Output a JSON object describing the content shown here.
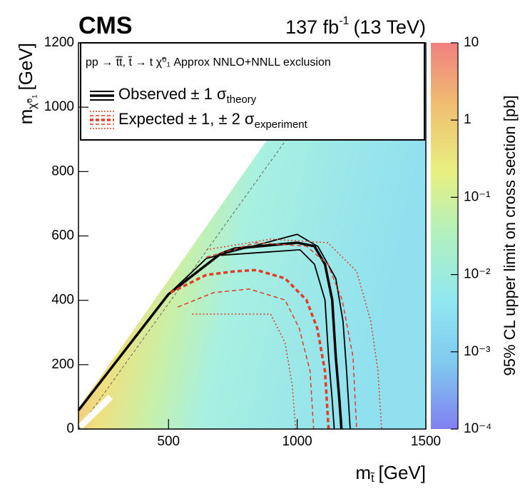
{
  "chart_data": {
    "type": "contour",
    "experiment": "CMS",
    "lumi": {
      "main": "137 fb",
      "sup": "-1",
      "tail": "(13 TeV)"
    },
    "xlabel": {
      "main": "m",
      "sub": "t̃",
      "tail": "[GeV]"
    },
    "ylabel": {
      "main": "m",
      "sub": "χ̃⁰₁",
      "tail": "[GeV]"
    },
    "zlabel": "95% CL upper limit on cross section [pb]",
    "legend_header": "pp → t̃t̃, t̃ → t χ̃⁰₁  Approx NNLO+NNLL exclusion",
    "legend": [
      {
        "main": "Observed ± 1 σ",
        "sub": "theory"
      },
      {
        "main": "Expected ± 1, ± 2 σ",
        "sub": "experiment"
      }
    ],
    "xlim": [
      150,
      1500
    ],
    "xticks": [
      500,
      1000,
      1500
    ],
    "ylim": [
      0,
      1200
    ],
    "yticks": [
      0,
      200,
      400,
      600,
      800,
      1000,
      1200
    ],
    "zlim": [
      0.0001,
      10
    ],
    "zlog": true,
    "zticks": [
      {
        "value": 0.0001,
        "label": "10⁻⁴"
      },
      {
        "value": 0.001,
        "label": "10⁻³"
      },
      {
        "value": 0.01,
        "label": "10⁻²"
      },
      {
        "value": 0.1,
        "label": "10⁻¹"
      },
      1,
      10
    ],
    "colormap": [
      "#8080f0",
      "#80c8f0",
      "#90e8f0",
      "#b0f0c0",
      "#e8f080",
      "#f0c070",
      "#f08080"
    ],
    "contours": [
      {
        "style": "observed",
        "color": "#000000",
        "x": [
          150,
          500,
          703,
          758,
          1000,
          1067,
          1108,
          1136,
          1150,
          1164,
          1172
        ],
        "y": [
          58,
          419,
          545,
          561,
          579,
          568,
          512,
          401,
          224,
          91,
          0
        ]
      },
      {
        "style": "observed-band",
        "color": "#000000",
        "x": [
          500,
          647,
          1000,
          1081,
          1150,
          1178,
          1192,
          1206
        ],
        "y": [
          419,
          530,
          605,
          567,
          468,
          335,
          180,
          0
        ]
      },
      {
        "style": "observed-band",
        "color": "#000000",
        "x": [
          703,
          1011,
          1067,
          1108,
          1122,
          1136,
          1144
        ],
        "y": [
          540,
          557,
          512,
          401,
          224,
          91,
          0
        ]
      },
      {
        "style": "expected",
        "color": "#e03c28",
        "x": [
          508,
          647,
          758,
          842,
          953,
          1036,
          1078,
          1108,
          1122
        ],
        "y": [
          424,
          479,
          490,
          494,
          468,
          401,
          313,
          180,
          0
        ]
      },
      {
        "style": "expected-1",
        "color": "#e03c28",
        "x": [
          647,
          842,
          1036,
          1119,
          1175,
          1217,
          1231
        ],
        "y": [
          534,
          579,
          568,
          512,
          401,
          224,
          0
        ]
      },
      {
        "style": "expected-1",
        "color": "#e03c28",
        "x": [
          536,
          675,
          814,
          953,
          1008,
          1050,
          1064
        ],
        "y": [
          379,
          424,
          435,
          401,
          313,
          180,
          0
        ]
      },
      {
        "style": "expected-2",
        "color": "#e03c28",
        "x": [
          647,
          897,
          1119,
          1231,
          1286,
          1314,
          1328
        ],
        "y": [
          557,
          590,
          579,
          490,
          335,
          180,
          0
        ]
      },
      {
        "style": "expected-2",
        "color": "#e03c28",
        "x": [
          592,
          758,
          897,
          953,
          981,
          994
        ],
        "y": [
          357,
          357,
          357,
          268,
          135,
          0
        ]
      }
    ]
  }
}
